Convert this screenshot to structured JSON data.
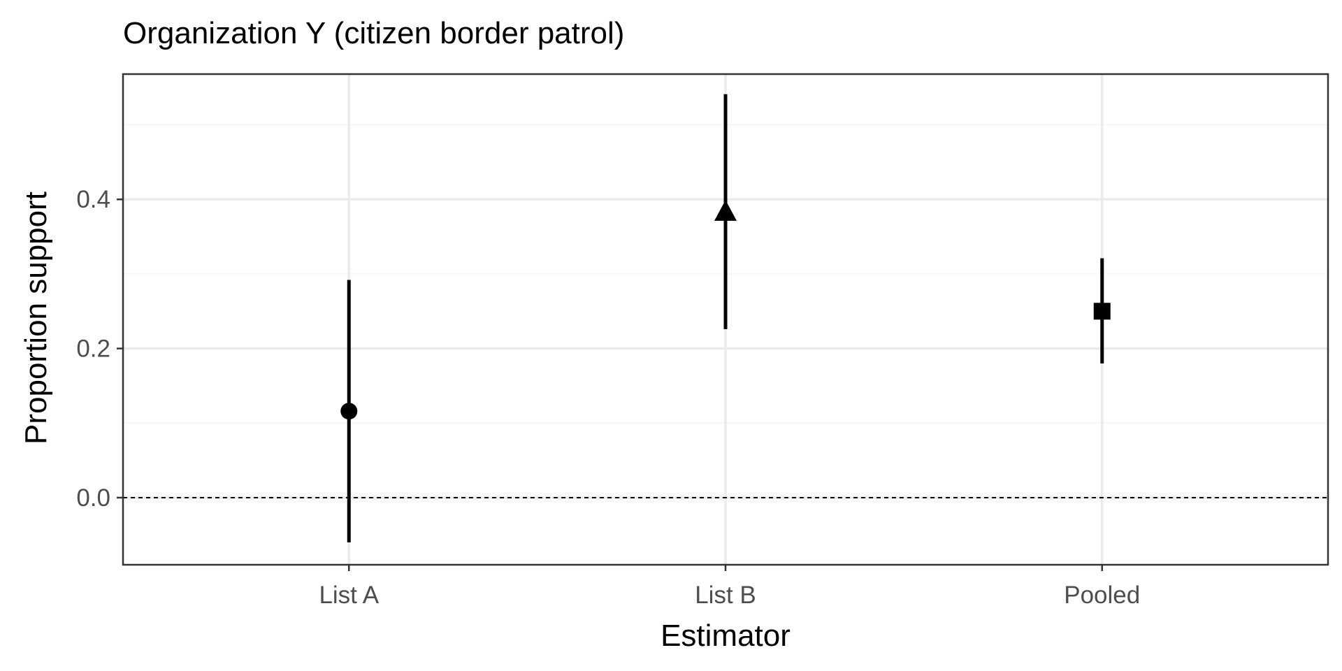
{
  "chart_data": {
    "type": "scatter",
    "title": "Organization Y (citizen border patrol)",
    "xlabel": "Estimator",
    "ylabel": "Proportion support",
    "categories": [
      "List A",
      "List B",
      "Pooled"
    ],
    "points": [
      {
        "category": "List A",
        "estimate": 0.116,
        "lower": -0.06,
        "upper": 0.292,
        "shape": "circle"
      },
      {
        "category": "List B",
        "estimate": 0.384,
        "lower": 0.226,
        "upper": 0.541,
        "shape": "triangle"
      },
      {
        "category": "Pooled",
        "estimate": 0.25,
        "lower": 0.18,
        "upper": 0.321,
        "shape": "square"
      }
    ],
    "ylim": [
      -0.09,
      0.568
    ],
    "yticks": [
      0.0,
      0.2,
      0.4
    ],
    "ytick_labels": [
      "0.0",
      "0.2",
      "0.4"
    ],
    "y_minor_ticks": [
      0.1,
      0.3,
      0.5
    ],
    "reference_line": {
      "y": 0,
      "style": "dashed"
    },
    "grid": true,
    "legend": "none",
    "colors": {
      "marks": "#000000",
      "grid_major": "#ebebeb",
      "grid_minor": "#f4f4f4",
      "panel_border": "#333333",
      "tick_label": "#4d4d4d",
      "text": "#000000"
    }
  }
}
